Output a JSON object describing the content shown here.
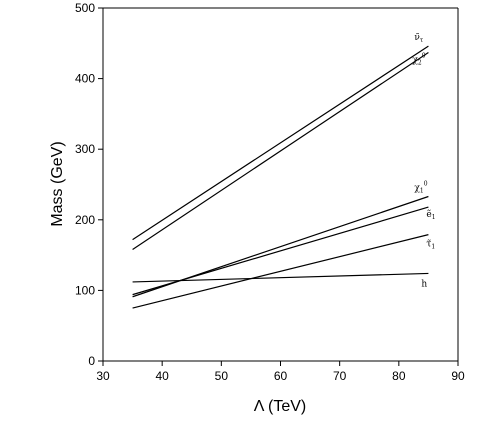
{
  "chart_data": {
    "type": "line",
    "title": "",
    "xlabel": "Λ (TeV)",
    "ylabel": "Mass (GeV)",
    "xlim": [
      30,
      90
    ],
    "ylim": [
      0,
      500
    ],
    "xticks": [
      30,
      40,
      50,
      60,
      70,
      80,
      90
    ],
    "yticks": [
      0,
      100,
      200,
      300,
      400,
      500
    ],
    "grid": false,
    "series": [
      {
        "name": "ν̃τ",
        "label_base": "ν̃",
        "label_sub": "τ",
        "label_sup": "",
        "x": [
          35,
          85
        ],
        "values": [
          172,
          446
        ]
      },
      {
        "name": "χ₂⁰",
        "label_base": "χ",
        "label_sub": "2",
        "label_sup": "0",
        "x": [
          35,
          85
        ],
        "values": [
          158,
          437
        ]
      },
      {
        "name": "χ₁⁰",
        "label_base": "χ",
        "label_sub": "1",
        "label_sup": "0",
        "x": [
          35,
          85
        ],
        "values": [
          91,
          233
        ]
      },
      {
        "name": "ẽ₁",
        "label_base": "ẽ",
        "label_sub": "1",
        "label_sup": "",
        "x": [
          35,
          85
        ],
        "values": [
          94,
          218
        ]
      },
      {
        "name": "τ̃₁",
        "label_base": "τ̃",
        "label_sub": "1",
        "label_sup": "",
        "x": [
          35,
          85
        ],
        "values": [
          75,
          179
        ]
      },
      {
        "name": "h",
        "label_base": "h",
        "label_sub": "",
        "label_sup": "",
        "x": [
          35,
          85
        ],
        "values": [
          112,
          124
        ]
      }
    ]
  }
}
